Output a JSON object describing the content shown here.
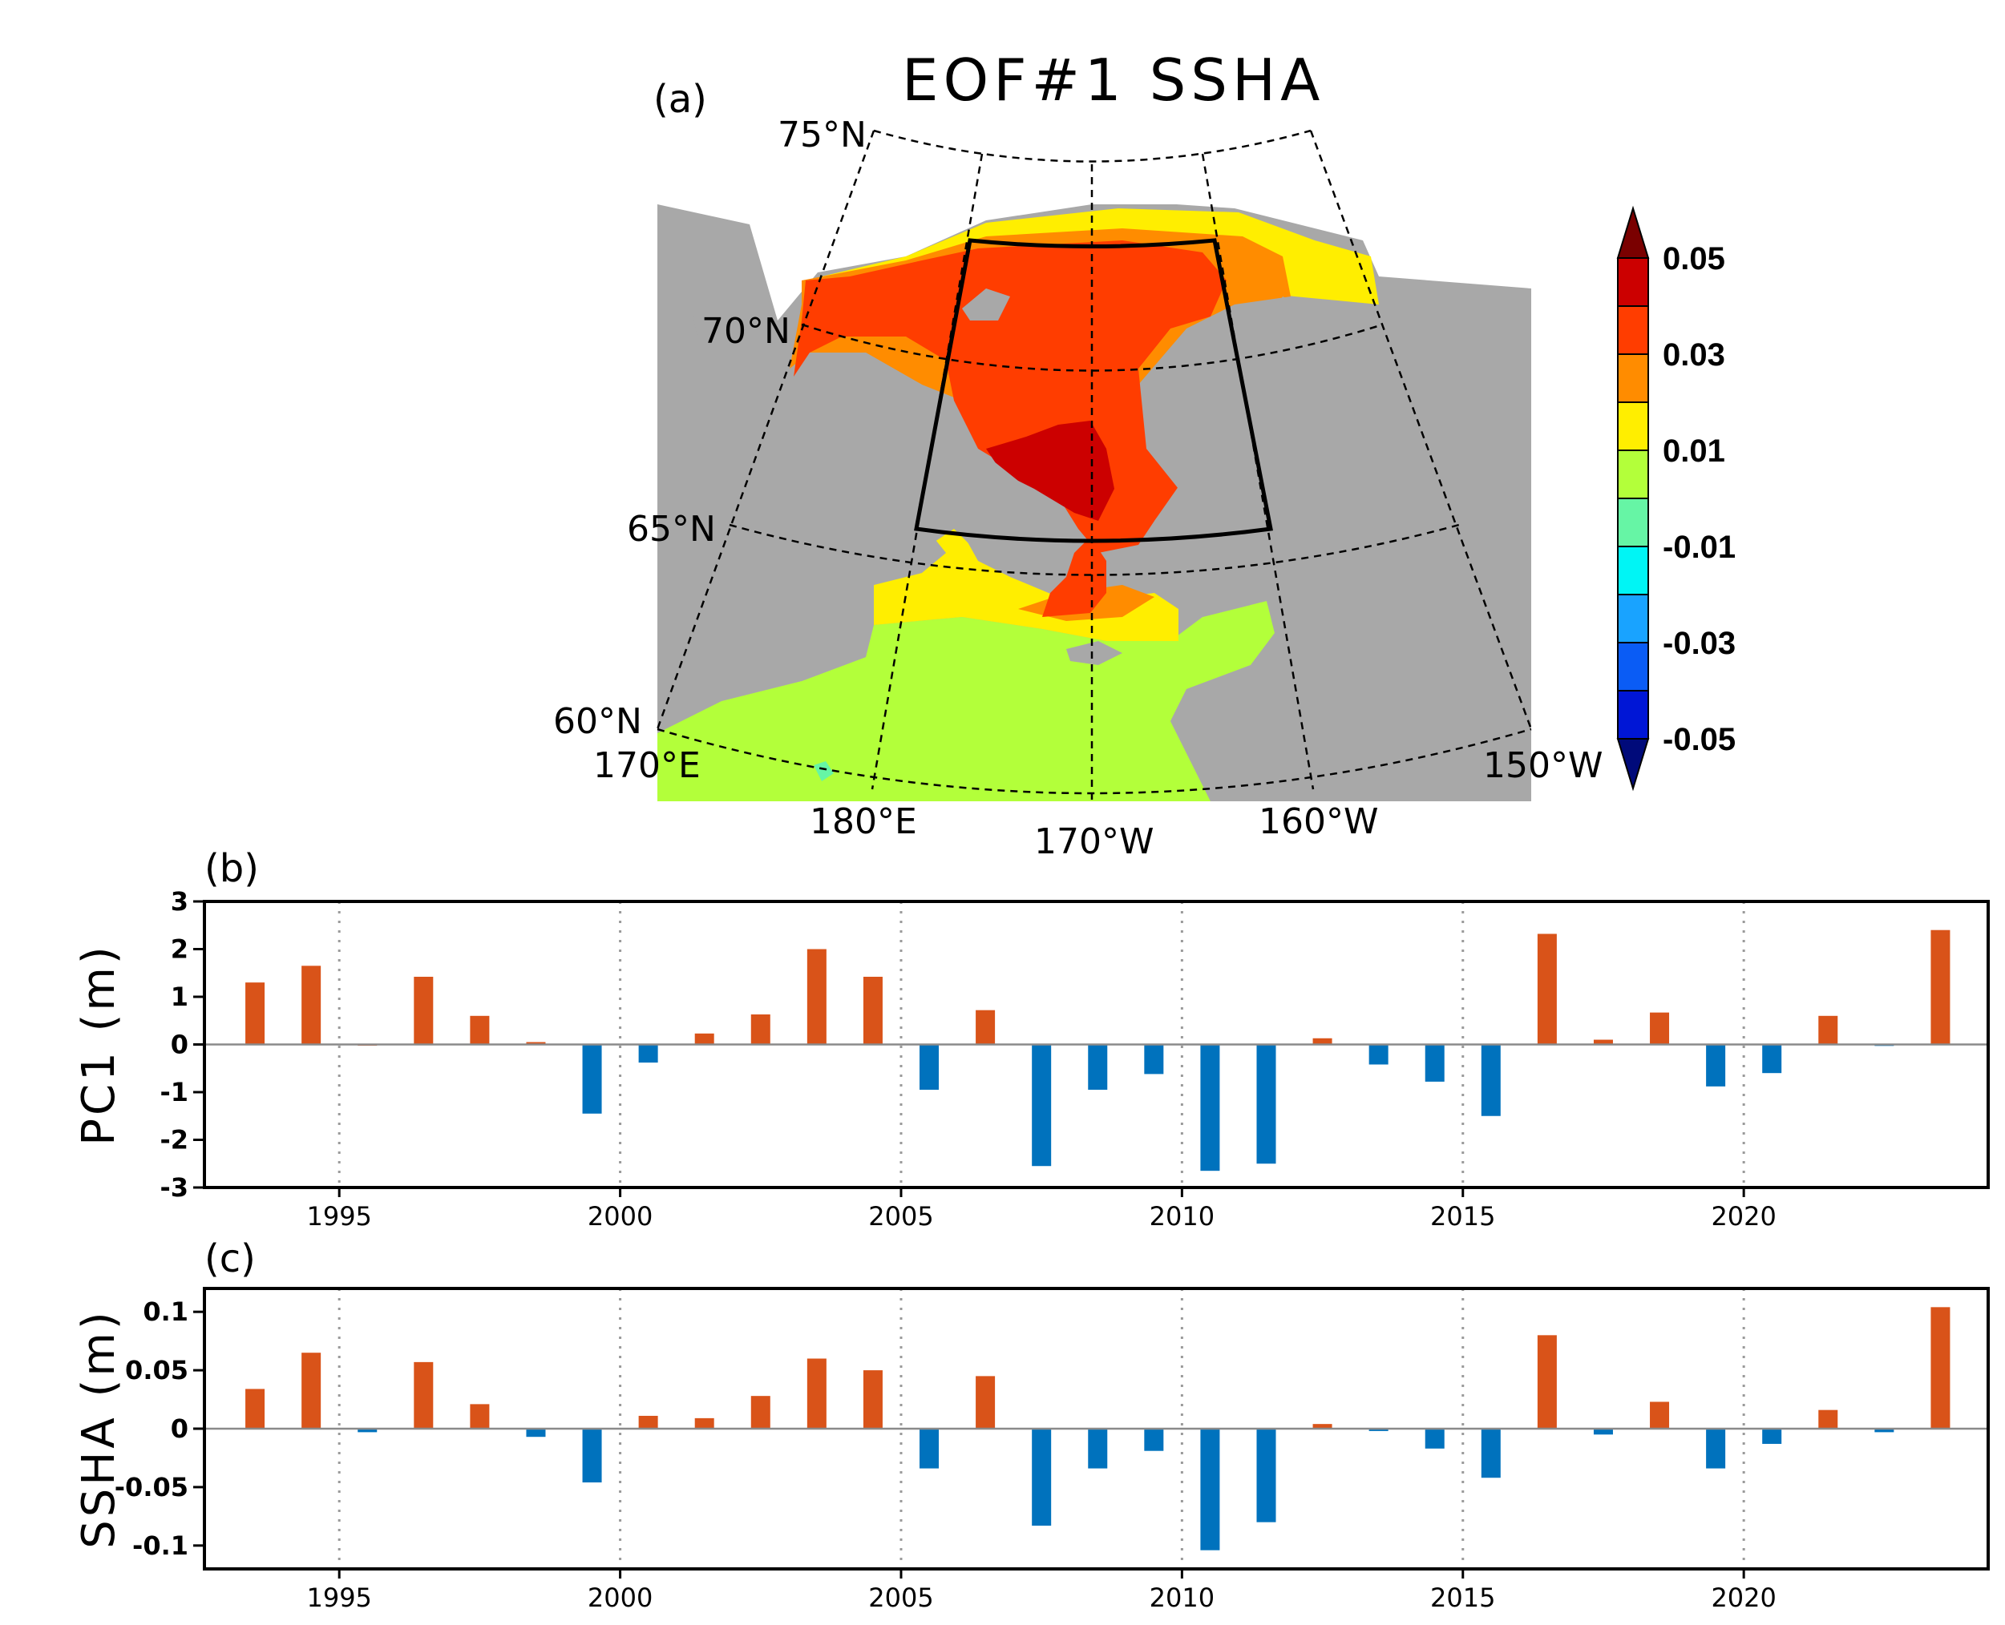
{
  "figure": {
    "map_title": "EOF#1 SSHA",
    "panel_a": "(a)",
    "panel_b": "(b)",
    "panel_c": "(c)",
    "lat_labels": [
      "75°N",
      "70°N",
      "65°N",
      "60°N"
    ],
    "lon_labels": [
      "170°E",
      "180°E",
      "170°W",
      "160°W",
      "150°W"
    ]
  },
  "colorbar": {
    "labels": [
      "0.05",
      "0.03",
      "0.01",
      "-0.01",
      "-0.03",
      "-0.05"
    ],
    "colors": [
      "#7a0000",
      "#cc0000",
      "#ff3d00",
      "#ff8c00",
      "#ffee00",
      "#b3ff3a",
      "#66f5a5",
      "#00f5f5",
      "#19a3ff",
      "#0a5cf5",
      "#0016d6",
      "#000a7a"
    ],
    "land_color": "#a8a8a8",
    "ocean_colors": {
      "dark_red": "#cc0000",
      "red": "#ff3d00",
      "orange": "#ff8c00",
      "yellow": "#ffee00",
      "green": "#b3ff3a",
      "aqua": "#66f5a5"
    }
  },
  "chart_data": [
    {
      "type": "bar",
      "title": "",
      "xlabel": "",
      "ylabel": "PC1 (m)",
      "ylim": [
        -3,
        3
      ],
      "yticks": [
        "3",
        "2",
        "1",
        "0",
        "-1",
        "-2",
        "-3"
      ],
      "xticks": [
        "1995",
        "2000",
        "2005",
        "2010",
        "2015",
        "2020"
      ],
      "positive_color": "#d95319",
      "negative_color": "#0072bd",
      "years": [
        1993,
        1994,
        1995,
        1996,
        1997,
        1998,
        1999,
        2000,
        2001,
        2002,
        2003,
        2004,
        2005,
        2006,
        2007,
        2008,
        2009,
        2010,
        2011,
        2012,
        2013,
        2014,
        2015,
        2016,
        2017,
        2018,
        2019,
        2020,
        2021,
        2022,
        2023
      ],
      "values": [
        1.3,
        1.65,
        0.0,
        1.42,
        0.6,
        0.05,
        -1.45,
        -0.38,
        0.23,
        0.63,
        2.0,
        1.42,
        -0.95,
        0.72,
        -2.55,
        -0.95,
        -0.62,
        -2.65,
        -2.5,
        0.13,
        -0.42,
        -0.78,
        -1.5,
        2.32,
        0.1,
        0.67,
        -0.88,
        -0.6,
        0.6,
        -0.03,
        2.4
      ]
    },
    {
      "type": "bar",
      "title": "",
      "xlabel": "",
      "ylabel": "SSHA (m)",
      "ylim": [
        -0.12,
        0.12
      ],
      "yticks": [
        "0.1",
        "0.05",
        "0",
        "-0.05",
        "-0.1"
      ],
      "xticks": [
        "1995",
        "2000",
        "2005",
        "2010",
        "2015",
        "2020"
      ],
      "positive_color": "#d95319",
      "negative_color": "#0072bd",
      "years": [
        1993,
        1994,
        1995,
        1996,
        1997,
        1998,
        1999,
        2000,
        2001,
        2002,
        2003,
        2004,
        2005,
        2006,
        2007,
        2008,
        2009,
        2010,
        2011,
        2012,
        2013,
        2014,
        2015,
        2016,
        2017,
        2018,
        2019,
        2020,
        2021,
        2022,
        2023
      ],
      "values": [
        0.034,
        0.065,
        -0.003,
        0.057,
        0.021,
        -0.007,
        -0.046,
        0.011,
        0.009,
        0.028,
        0.06,
        0.05,
        -0.034,
        0.045,
        -0.083,
        -0.034,
        -0.019,
        -0.104,
        -0.08,
        0.004,
        -0.002,
        -0.017,
        -0.042,
        0.08,
        -0.005,
        0.023,
        -0.034,
        -0.013,
        0.016,
        -0.003,
        0.104
      ]
    }
  ]
}
